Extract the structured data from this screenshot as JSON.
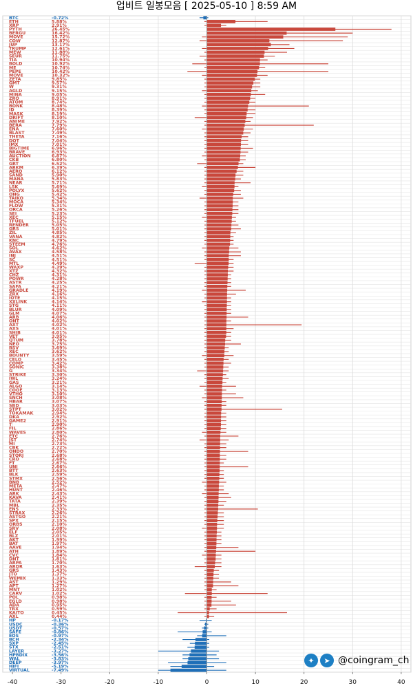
{
  "chart_data": {
    "type": "bar",
    "orientation": "horizontal",
    "title": "업비트 일봉모음 [ 2025-05-10 ]  8:59 AM",
    "xlim": [
      -42,
      42
    ],
    "xticks": [
      -40,
      -30,
      -20,
      -10,
      0,
      10,
      20,
      30,
      40
    ],
    "grid": true,
    "colors": {
      "up": "#c9483c",
      "down": "#1f6fb8"
    },
    "series_fields": [
      "label",
      "change_pct",
      "range_low",
      "range_high"
    ],
    "rows": [
      [
        "BTC",
        -0.72,
        -1.5,
        0.3
      ],
      [
        "ETH",
        5.88,
        -0.5,
        12.5
      ],
      [
        "XRP",
        2.91,
        -0.5,
        4.0
      ],
      [
        "PYTH",
        26.45,
        0.0,
        38.0
      ],
      [
        "BERGU",
        16.42,
        0.5,
        30.0
      ],
      [
        "MOVE",
        15.72,
        -1.0,
        29.0
      ],
      [
        "COW",
        12.87,
        -1.5,
        28.0
      ],
      [
        "JUP",
        13.17,
        0.0,
        17.0
      ],
      [
        "TRUMP",
        12.61,
        -1.0,
        18.0
      ],
      [
        "MEW",
        11.88,
        -0.5,
        16.5
      ],
      [
        "SEUR",
        11.75,
        -1.5,
        14.0
      ],
      [
        "TIA",
        10.94,
        -0.5,
        12.5
      ],
      [
        "BOLD",
        10.92,
        -3.0,
        25.0
      ],
      [
        "ME",
        10.74,
        -0.5,
        12.0
      ],
      [
        "PEPE",
        10.42,
        -4.0,
        25.0
      ],
      [
        "MOVE",
        10.32,
        -1.0,
        12.5
      ],
      [
        "ZETA",
        9.85,
        -0.5,
        11.0
      ],
      [
        "GMT",
        9.57,
        -0.5,
        11.0
      ],
      [
        "W",
        9.31,
        -0.5,
        11.0
      ],
      [
        "AGLD",
        9.15,
        -1.0,
        10.5
      ],
      [
        "MINA",
        9.05,
        -0.5,
        12.0
      ],
      [
        "ZRO",
        8.91,
        -0.5,
        10.0
      ],
      [
        "ATOM",
        8.74,
        -0.5,
        10.0
      ],
      [
        "BONK",
        8.48,
        -1.0,
        21.0
      ],
      [
        "ID",
        8.39,
        -0.5,
        10.0
      ],
      [
        "MASK",
        8.19,
        -0.5,
        10.0
      ],
      [
        "DRIFT",
        8.1,
        -2.5,
        9.5
      ],
      [
        "ANIME",
        7.92,
        -0.5,
        9.0
      ],
      [
        "BERA",
        7.79,
        -0.5,
        22.0
      ],
      [
        "ENA",
        7.6,
        -1.0,
        9.5
      ],
      [
        "BLAST",
        7.49,
        -0.5,
        9.0
      ],
      [
        "THETA",
        7.16,
        -0.5,
        8.5
      ],
      [
        "DOT",
        7.04,
        -0.5,
        8.5
      ],
      [
        "IMX",
        7.01,
        -0.5,
        8.5
      ],
      [
        "BIGTIME",
        6.96,
        -0.5,
        9.5
      ],
      [
        "BRAVE",
        6.93,
        -0.5,
        8.5
      ],
      [
        "AUCTION",
        6.87,
        -1.0,
        8.0
      ],
      [
        "CKB",
        6.8,
        -0.5,
        8.0
      ],
      [
        "GRT",
        6.52,
        -2.0,
        7.5
      ],
      [
        "ARKM",
        6.39,
        -0.5,
        10.0
      ],
      [
        "AERO",
        6.12,
        -0.5,
        7.5
      ],
      [
        "SAND",
        5.9,
        -0.5,
        7.5
      ],
      [
        "MANA",
        5.83,
        -0.5,
        7.0
      ],
      [
        "NEAR",
        5.71,
        -0.5,
        9.0
      ],
      [
        "LSK",
        5.69,
        -1.0,
        6.5
      ],
      [
        "POLYX",
        5.62,
        -0.5,
        7.0
      ],
      [
        "ONG",
        5.42,
        -0.5,
        7.0
      ],
      [
        "TAIKO",
        5.34,
        -1.5,
        7.5
      ],
      [
        "MOCA",
        5.34,
        -0.5,
        6.5
      ],
      [
        "FLOW",
        5.31,
        -0.5,
        6.5
      ],
      [
        "ORCA",
        5.26,
        -0.5,
        6.5
      ],
      [
        "SEI",
        5.23,
        -0.5,
        6.5
      ],
      [
        "XEC",
        5.15,
        -1.0,
        6.0
      ],
      [
        "TFUEL",
        5.12,
        -0.5,
        6.0
      ],
      [
        "RENDER",
        5.05,
        -0.5,
        6.5
      ],
      [
        "GRS",
        5.01,
        -0.5,
        7.0
      ],
      [
        "ZIL",
        4.85,
        -0.5,
        6.0
      ],
      [
        "VANA",
        4.82,
        -0.5,
        5.5
      ],
      [
        "KNC",
        4.79,
        -0.5,
        5.5
      ],
      [
        "STEEM",
        4.76,
        -0.5,
        5.5
      ],
      [
        "SOL",
        4.62,
        -1.0,
        6.5
      ],
      [
        "AVAX",
        4.58,
        -0.5,
        7.0
      ],
      [
        "INJ",
        4.51,
        -0.5,
        7.0
      ],
      [
        "SC",
        4.51,
        -0.5,
        5.5
      ],
      [
        "MTL",
        4.49,
        -2.5,
        5.5
      ],
      [
        "WAXP",
        4.39,
        -0.5,
        5.5
      ],
      [
        "XTZ",
        4.32,
        -0.5,
        5.5
      ],
      [
        "CHZ",
        4.31,
        -0.5,
        5.0
      ],
      [
        "POWR",
        4.28,
        -0.5,
        5.0
      ],
      [
        "ASTR",
        4.25,
        -0.5,
        5.0
      ],
      [
        "SAFA",
        4.21,
        -0.5,
        5.0
      ],
      [
        "GRADLE",
        4.19,
        -1.0,
        8.0
      ],
      [
        "ZRX",
        4.16,
        -0.5,
        6.0
      ],
      [
        "IOTE",
        4.15,
        -0.5,
        5.0
      ],
      [
        "XXLINK",
        4.14,
        -1.0,
        5.0
      ],
      [
        "STG",
        4.11,
        -0.5,
        5.0
      ],
      [
        "BLUR",
        4.09,
        -0.5,
        5.0
      ],
      [
        "GLM",
        4.07,
        -0.5,
        5.0
      ],
      [
        "ARB",
        4.06,
        -0.5,
        8.5
      ],
      [
        "ONT",
        4.02,
        -0.5,
        5.0
      ],
      [
        "AXT",
        4.02,
        -0.5,
        19.5
      ],
      [
        "AXS",
        4.01,
        -0.5,
        5.5
      ],
      [
        "SHIB",
        4.01,
        -0.5,
        5.0
      ],
      [
        "VET",
        3.95,
        -0.5,
        5.0
      ],
      [
        "QTUM",
        3.78,
        -0.5,
        5.0
      ],
      [
        "NEO",
        3.75,
        -0.5,
        7.0
      ],
      [
        "BSV",
        3.69,
        -0.5,
        4.5
      ],
      [
        "XEC",
        3.62,
        -0.5,
        4.5
      ],
      [
        "BOUNTY",
        3.59,
        -1.0,
        5.5
      ],
      [
        "CELO",
        3.45,
        -0.5,
        4.5
      ],
      [
        "COMP",
        3.42,
        -0.5,
        5.0
      ],
      [
        "SONIC",
        3.38,
        -0.5,
        4.5
      ],
      [
        "G",
        3.34,
        -2.0,
        4.5
      ],
      [
        "STRIKE",
        3.3,
        -0.5,
        4.0
      ],
      [
        "IWL",
        3.24,
        -0.5,
        4.5
      ],
      [
        "GAS",
        3.21,
        -0.5,
        4.0
      ],
      [
        "ALGO",
        3.14,
        -1.5,
        6.0
      ],
      [
        "COOE",
        3.13,
        -0.5,
        4.0
      ],
      [
        "VTHO",
        3.1,
        -0.5,
        6.0
      ],
      [
        "SNCH",
        3.08,
        -1.0,
        7.5
      ],
      [
        "HBAR",
        3.07,
        -0.5,
        4.0
      ],
      [
        "SBD",
        3.03,
        -0.5,
        4.0
      ],
      [
        "STPT",
        3.02,
        -0.5,
        15.5
      ],
      [
        "TOKAMAK",
        2.94,
        -0.5,
        4.0
      ],
      [
        "DKA",
        2.92,
        -0.5,
        4.0
      ],
      [
        "GAME2",
        2.91,
        -0.5,
        4.0
      ],
      [
        "T",
        2.9,
        -0.5,
        4.0
      ],
      [
        "FIL",
        2.86,
        -0.5,
        4.0
      ],
      [
        "WAVES",
        2.8,
        -1.0,
        4.0
      ],
      [
        "ETC",
        2.76,
        -0.5,
        6.5
      ],
      [
        "JST",
        2.74,
        -1.5,
        4.5
      ],
      [
        "MI",
        2.73,
        -0.5,
        4.0
      ],
      [
        "CBK",
        2.72,
        -0.5,
        4.0
      ],
      [
        "ONDO",
        2.7,
        -0.5,
        8.5
      ],
      [
        "STORJ",
        2.68,
        -0.5,
        4.0
      ],
      [
        "CRO",
        2.68,
        -0.5,
        4.0
      ],
      [
        "FT",
        2.67,
        -0.5,
        3.5
      ],
      [
        "UNI",
        2.66,
        -0.5,
        8.5
      ],
      [
        "BTT",
        2.63,
        -0.5,
        3.5
      ],
      [
        "BLK",
        2.59,
        -0.5,
        3.5
      ],
      [
        "STMX",
        2.56,
        -0.5,
        3.5
      ],
      [
        "BNB",
        2.52,
        -1.0,
        4.0
      ],
      [
        "META",
        2.47,
        -0.5,
        3.5
      ],
      [
        "HUNT",
        2.46,
        -0.5,
        3.5
      ],
      [
        "ARK",
        2.43,
        -1.0,
        4.5
      ],
      [
        "KAVA",
        2.41,
        -0.5,
        5.0
      ],
      [
        "TATA",
        2.39,
        -0.5,
        4.0
      ],
      [
        "MBL",
        2.35,
        -0.5,
        3.5
      ],
      [
        "ENS",
        2.33,
        -0.5,
        10.5
      ],
      [
        "STRAX",
        2.26,
        -0.5,
        3.5
      ],
      [
        "ASTGO",
        2.21,
        -0.5,
        3.5
      ],
      [
        "SPX",
        2.15,
        -0.5,
        3.5
      ],
      [
        "ORBS",
        2.1,
        -0.5,
        3.5
      ],
      [
        "SRV",
        2.08,
        -1.0,
        3.5
      ],
      [
        "ELF",
        2.05,
        -0.5,
        3.0
      ],
      [
        "BLZ",
        2.01,
        -0.5,
        3.0
      ],
      [
        "AKT",
        1.99,
        -0.5,
        3.0
      ],
      [
        "BAT",
        1.97,
        -0.5,
        3.0
      ],
      [
        "AAVE",
        1.94,
        -0.5,
        6.5
      ],
      [
        "ATH",
        1.89,
        -0.5,
        10.0
      ],
      [
        "CVC",
        1.84,
        -1.0,
        3.0
      ],
      [
        "DNT",
        1.81,
        -0.5,
        3.0
      ],
      [
        "ARPA",
        1.7,
        -0.5,
        3.0
      ],
      [
        "ARDR",
        1.63,
        -2.5,
        3.0
      ],
      [
        "GRS",
        1.43,
        -0.5,
        2.5
      ],
      [
        "JTO",
        1.37,
        -0.5,
        2.5
      ],
      [
        "WEMIX",
        1.33,
        -0.5,
        2.5
      ],
      [
        "AST",
        1.29,
        -0.5,
        5.0
      ],
      [
        "APT",
        1.27,
        -0.5,
        6.5
      ],
      [
        "MNT",
        1.02,
        -0.5,
        2.0
      ],
      [
        "CARV",
        1.02,
        -4.5,
        12.5
      ],
      [
        "POL",
        0.98,
        -0.5,
        2.0
      ],
      [
        "EGLD",
        0.98,
        -0.5,
        5.0
      ],
      [
        "ADA",
        0.95,
        -0.5,
        6.0
      ],
      [
        "TRX",
        0.59,
        -0.5,
        2.0
      ],
      [
        "KAITO",
        0.45,
        -6.0,
        16.5
      ],
      [
        "AXL",
        0.44,
        -0.5,
        1.5
      ],
      [
        "HP",
        -0.17,
        -1.5,
        1.0
      ],
      [
        "USDC",
        -0.36,
        -0.5,
        0.3
      ],
      [
        "USDT",
        -0.57,
        -1.0,
        0.3
      ],
      [
        "SAFE",
        -0.86,
        -6.0,
        1.0
      ],
      [
        "EOS",
        -0.97,
        -2.0,
        4.0
      ],
      [
        "BCH",
        -2.34,
        -5.0,
        0.5
      ],
      [
        "SXP",
        -2.45,
        -3.5,
        0.5
      ],
      [
        "STX",
        -2.51,
        -4.0,
        0.5
      ],
      [
        "LAYER",
        -3.27,
        -10.0,
        2.5
      ],
      [
        "HPBDIX",
        -3.56,
        -5.0,
        2.0
      ],
      [
        "WAL",
        -3.83,
        -5.0,
        2.5
      ],
      [
        "DEEP",
        -3.97,
        -8.0,
        4.0
      ],
      [
        "HIFI",
        -5.19,
        -7.5,
        1.5
      ],
      [
        "VIRTUAL",
        -7.49,
        -10.0,
        4.0
      ]
    ]
  },
  "brand": {
    "handle": "@coingram_ch",
    "icons": [
      "twitter-icon",
      "telegram-icon"
    ]
  }
}
